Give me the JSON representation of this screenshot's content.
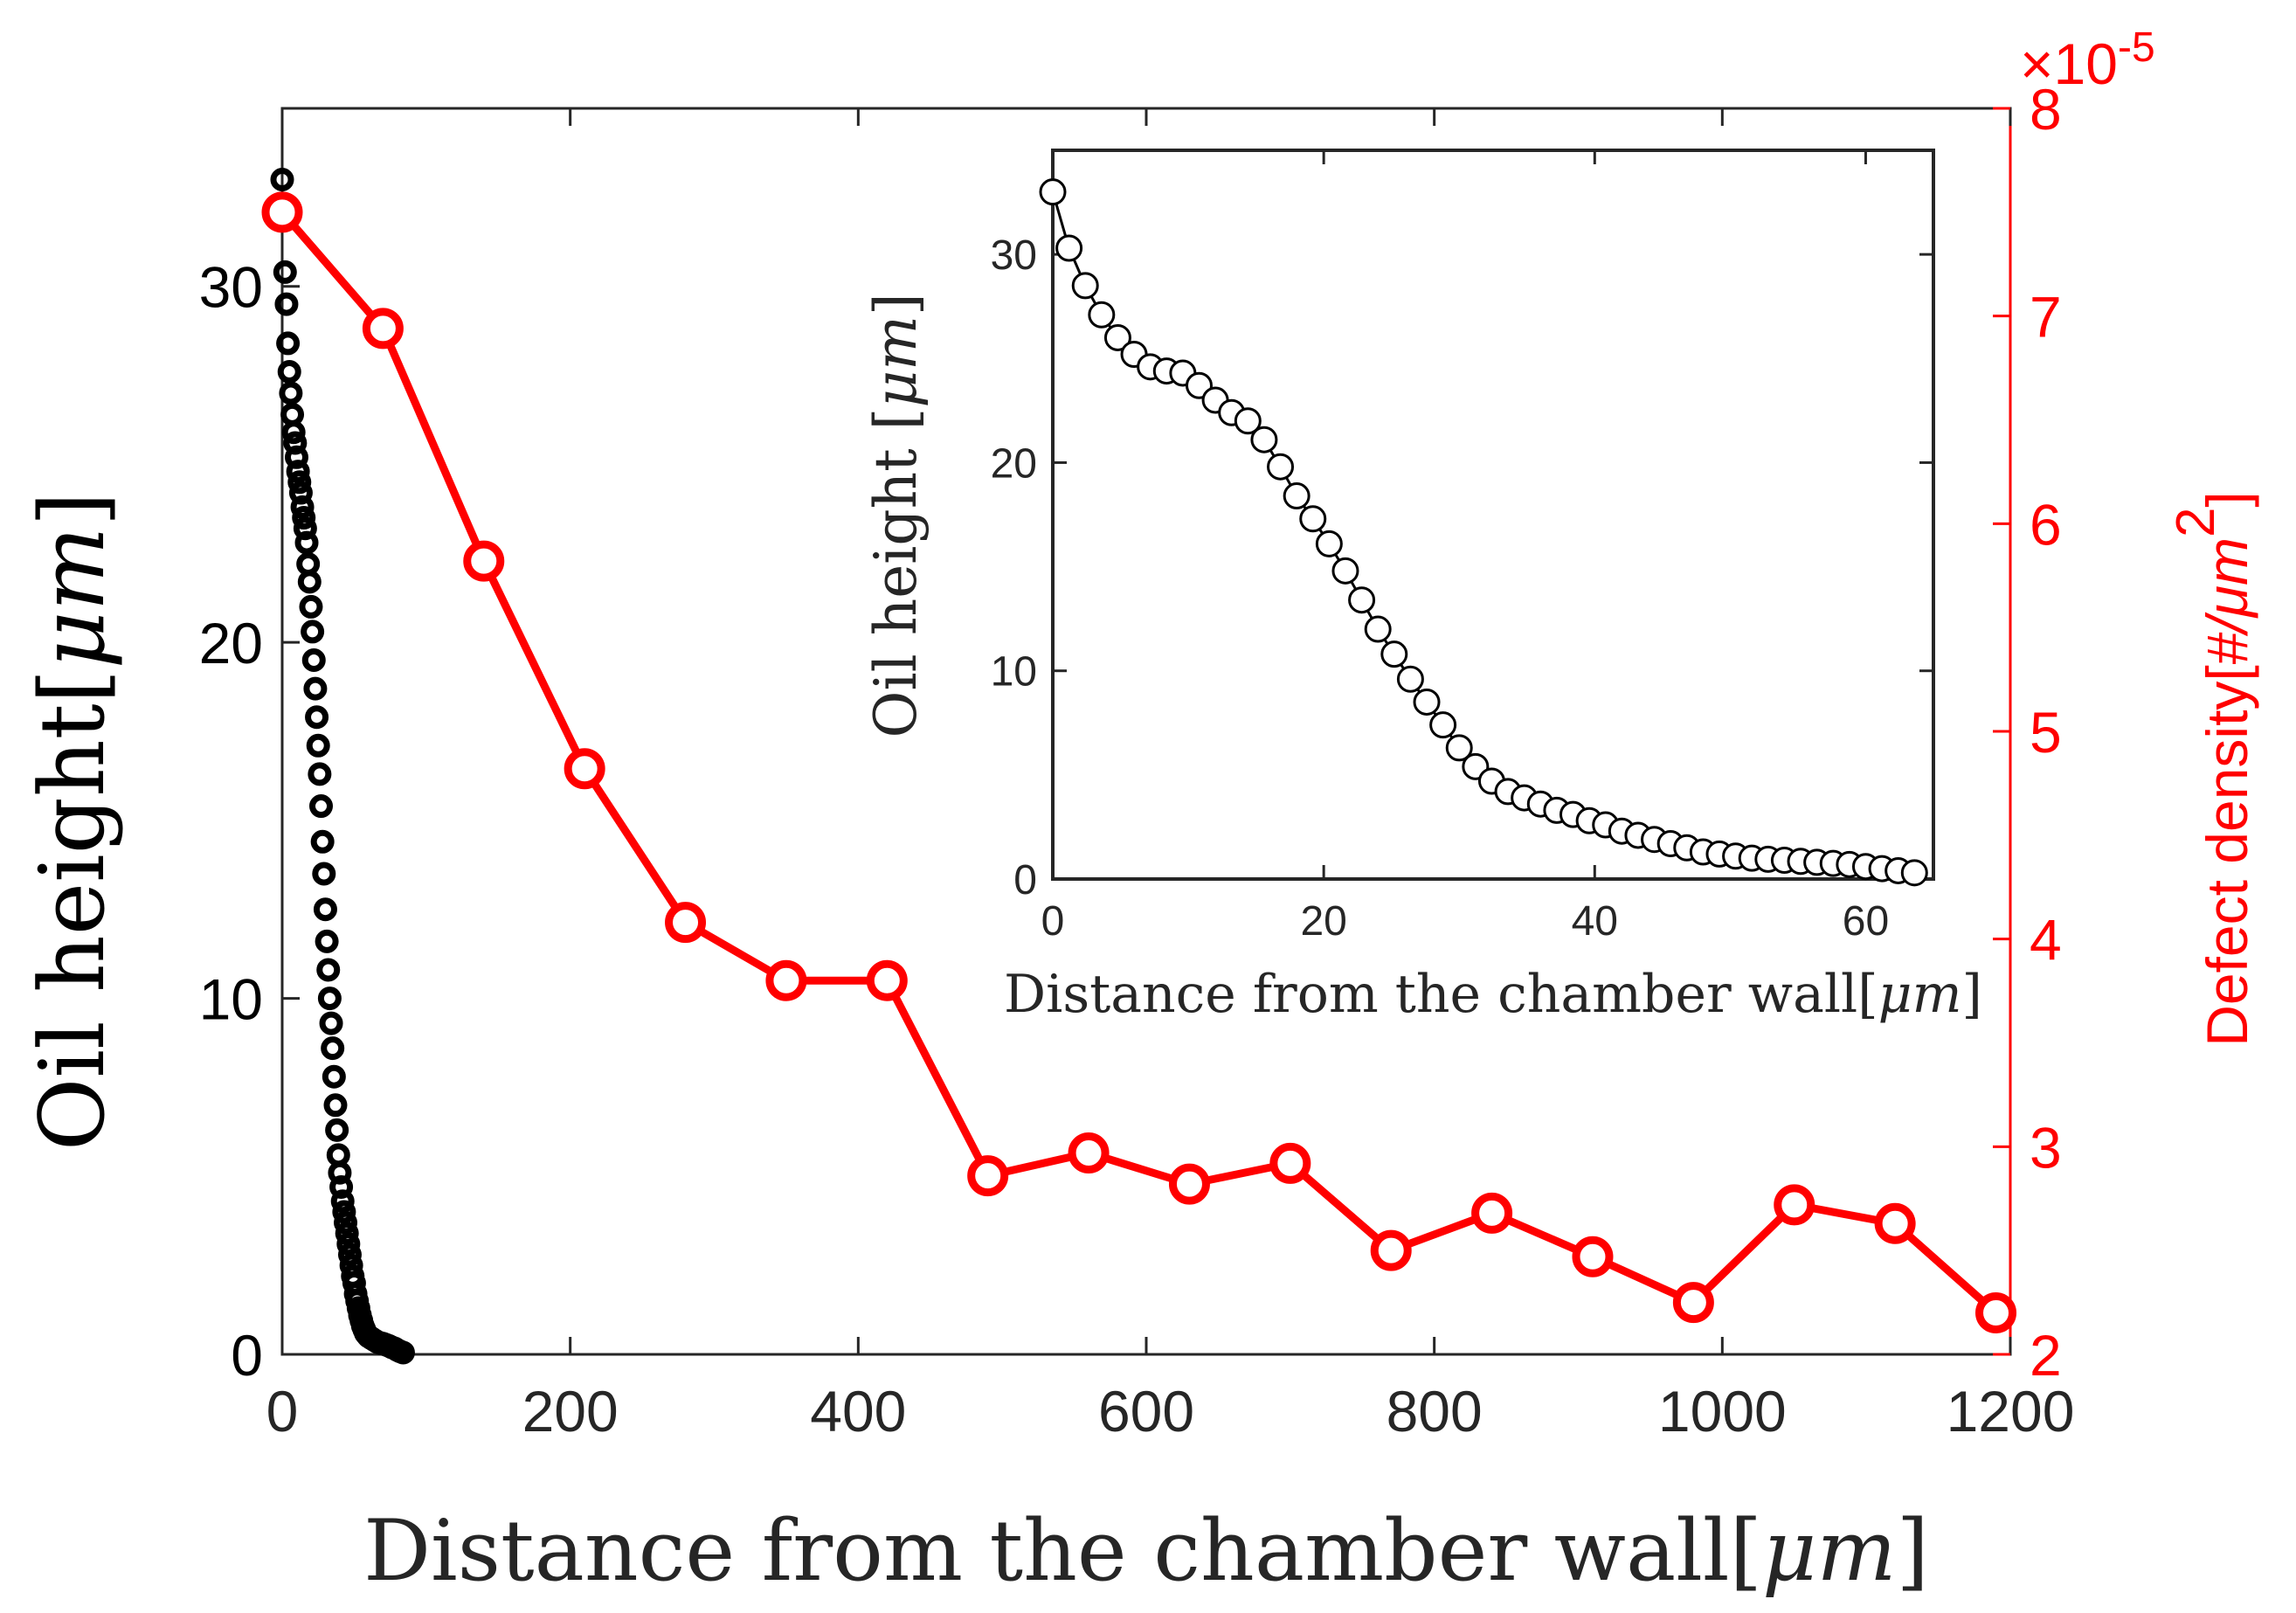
{
  "chart_data": {
    "type": "line",
    "xlabel_text": "Distance from the chamber wall",
    "xlabel_unit": "μm",
    "ylabel_left_text": "Oil height",
    "ylabel_left_unit": "μm",
    "ylabel_right_text": "Defect density",
    "ylabel_right_unit": "#/μm",
    "ylabel_right_unit_power": "2",
    "right_scale_base": "×10",
    "right_scale_exponent": "-5",
    "xlim": [
      0,
      1200
    ],
    "ylim_left": [
      0,
      35
    ],
    "ylim_right": [
      2,
      8
    ],
    "x_ticks": [
      0,
      200,
      400,
      600,
      800,
      1000,
      1200
    ],
    "y_left_ticks": [
      0,
      10,
      20,
      30
    ],
    "y_right_ticks": [
      2,
      3,
      4,
      5,
      6,
      7,
      8
    ],
    "colors": {
      "oil": "#000000",
      "defect": "#ff0000",
      "axis": "#262626"
    },
    "series": [
      {
        "name": "Oil height",
        "axis": "left",
        "style": "circles",
        "x": [
          0,
          1,
          2,
          3,
          4,
          5,
          6,
          7,
          8,
          9,
          10,
          11,
          12,
          13,
          14,
          15,
          16,
          17,
          18,
          19,
          20,
          21,
          22,
          23,
          24,
          25,
          26,
          27,
          28,
          29,
          30,
          31,
          32,
          33,
          34,
          35,
          36,
          37,
          38,
          39,
          40,
          41,
          42,
          43,
          44,
          45,
          46,
          47,
          48,
          49,
          50,
          51,
          52,
          53,
          54,
          55,
          56,
          57,
          58,
          59,
          60,
          62,
          64,
          66,
          68,
          70,
          72,
          74,
          76,
          78,
          80,
          82,
          84
        ],
        "values": [
          33,
          32,
          30.4,
          29.5,
          28.4,
          27.6,
          27,
          26.4,
          25.9,
          25.6,
          25.2,
          24.8,
          24.5,
          24.2,
          23.8,
          23.5,
          23.2,
          22.8,
          22.2,
          21.7,
          21,
          20.3,
          19.5,
          18.7,
          17.9,
          17.1,
          16.3,
          15.4,
          14.4,
          13.5,
          12.5,
          11.6,
          10.8,
          10,
          9.3,
          8.6,
          7.8,
          7,
          6.3,
          5.6,
          5.1,
          4.7,
          4.3,
          4,
          3.7,
          3.4,
          3.1,
          2.8,
          2.5,
          2.2,
          2,
          1.7,
          1.5,
          1.3,
          1.1,
          0.95,
          0.8,
          0.7,
          0.6,
          0.55,
          0.5,
          0.45,
          0.4,
          0.35,
          0.32,
          0.3,
          0.27,
          0.24,
          0.2,
          0.17,
          0.12,
          0.08,
          0.05
        ]
      },
      {
        "name": "Defect density",
        "axis": "right",
        "style": "line+circles",
        "x": [
          0,
          70,
          140,
          210,
          280,
          350,
          420,
          490,
          560,
          630,
          700,
          770,
          840,
          910,
          980,
          1050,
          1120,
          1190
        ],
        "values": [
          7.5,
          6.94,
          5.82,
          4.82,
          4.08,
          3.8,
          3.8,
          2.86,
          2.97,
          2.82,
          2.92,
          2.5,
          2.68,
          2.47,
          2.25,
          2.72,
          2.63,
          2.2
        ]
      }
    ],
    "inset": {
      "type": "scatter",
      "xlabel_text": "Distance from the chamber wall",
      "xlabel_unit": "μm",
      "ylabel_text": "Oil height",
      "ylabel_unit": "μm",
      "xlim": [
        0,
        65
      ],
      "ylim": [
        0,
        35
      ],
      "x_ticks": [
        0,
        20,
        40,
        60
      ],
      "y_ticks": [
        0,
        10,
        20,
        30
      ],
      "x": [
        0,
        1.2,
        2.4,
        3.6,
        4.8,
        6,
        7.2,
        8.4,
        9.6,
        10.8,
        12,
        13.2,
        14.4,
        15.6,
        16.8,
        18,
        19.2,
        20.4,
        21.6,
        22.8,
        24,
        25.2,
        26.4,
        27.6,
        28.8,
        30,
        31.2,
        32.4,
        33.6,
        34.8,
        36,
        37.2,
        38.4,
        39.6,
        40.8,
        42,
        43.2,
        44.4,
        45.6,
        46.8,
        48,
        49.2,
        50.4,
        51.6,
        52.8,
        54,
        55.2,
        56.4,
        57.6,
        58.8,
        60,
        61.2,
        62.4,
        63.6
      ],
      "values": [
        33,
        30.3,
        28.5,
        27.1,
        26,
        25.2,
        24.6,
        24.4,
        24.3,
        23.7,
        23,
        22.4,
        22,
        21.1,
        19.8,
        18.4,
        17.3,
        16.1,
        14.8,
        13.4,
        12,
        10.8,
        9.6,
        8.5,
        7.4,
        6.3,
        5.4,
        4.7,
        4.2,
        3.9,
        3.6,
        3.3,
        3.1,
        2.8,
        2.6,
        2.3,
        2.1,
        1.9,
        1.7,
        1.5,
        1.3,
        1.2,
        1.1,
        1,
        0.95,
        0.9,
        0.85,
        0.8,
        0.75,
        0.7,
        0.6,
        0.5,
        0.4,
        0.3
      ]
    }
  }
}
